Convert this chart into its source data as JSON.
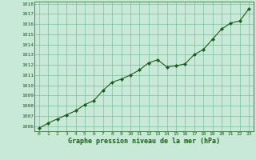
{
  "x": [
    0,
    1,
    2,
    3,
    4,
    5,
    6,
    7,
    8,
    9,
    10,
    11,
    12,
    13,
    14,
    15,
    16,
    17,
    18,
    19,
    20,
    21,
    22,
    23
  ],
  "y": [
    1005.8,
    1006.3,
    1006.7,
    1007.1,
    1007.5,
    1008.1,
    1008.5,
    1009.5,
    1010.3,
    1010.6,
    1011.0,
    1011.5,
    1012.2,
    1012.5,
    1011.8,
    1011.9,
    1012.1,
    1013.0,
    1013.5,
    1014.5,
    1015.5,
    1016.1,
    1016.3,
    1017.5
  ],
  "ylim": [
    1005.5,
    1018.2
  ],
  "yticks": [
    1006,
    1007,
    1008,
    1009,
    1010,
    1011,
    1012,
    1013,
    1014,
    1015,
    1016,
    1017,
    1018
  ],
  "xticks": [
    0,
    1,
    2,
    3,
    4,
    5,
    6,
    7,
    8,
    9,
    10,
    11,
    12,
    13,
    14,
    15,
    16,
    17,
    18,
    19,
    20,
    21,
    22,
    23
  ],
  "xlabel": "Graphe pression niveau de la mer (hPa)",
  "line_color": "#1a5c1a",
  "marker_color": "#1a5c1a",
  "bg_color": "#c8e8d8",
  "grid_color": "#7abf9a",
  "title_color": "#1a5c1a",
  "tick_color": "#1a5c1a"
}
